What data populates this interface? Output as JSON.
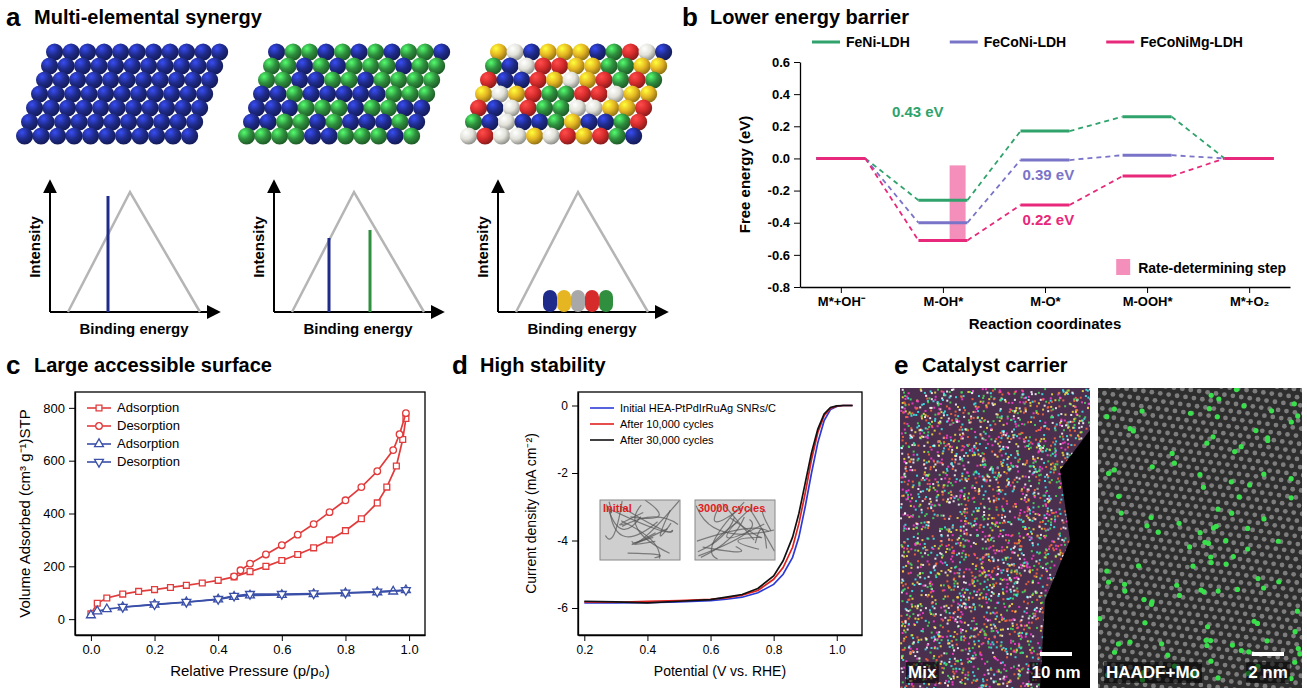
{
  "figure": {
    "a": {
      "label": "a",
      "title": "Multi-elemental synergy",
      "plots": [
        {
          "y_label": "Intensity",
          "x_label": "Binding energy"
        },
        {
          "y_label": "Intensity",
          "x_label": "Binding energy"
        },
        {
          "y_label": "Intensity",
          "x_label": "Binding energy"
        }
      ]
    },
    "e": {
      "label": "e",
      "title": "Catalyst carrier",
      "images": [
        {
          "label": "Mix",
          "scale_bar": "10 nm"
        },
        {
          "label": "HAADF+Mo",
          "scale_bar": "2 nm"
        }
      ]
    }
  },
  "chart_data": [
    {
      "label": "b",
      "title": "Lower energy barrier",
      "type": "step",
      "x_label": "Reaction coordinates",
      "y_label": "Free energy (eV)",
      "categories": [
        "M*+OH⁻",
        "M-OH*",
        "M-O*",
        "M-OOH*",
        "M*+O₂"
      ],
      "series": [
        {
          "name": "FeNi-LDH",
          "color": "#2fa36b",
          "values": [
            0,
            -0.26,
            0.17,
            0.26,
            0
          ]
        },
        {
          "name": "FeCoNi-LDH",
          "color": "#7a74c8",
          "values": [
            0,
            -0.4,
            -0.01,
            0.02,
            0
          ]
        },
        {
          "name": "FeCoNiMg-LDH",
          "color": "#e8287a",
          "values": [
            0,
            -0.51,
            -0.29,
            -0.11,
            0
          ]
        }
      ],
      "ylim": [
        -0.8,
        0.6
      ],
      "yticks": [
        -0.8,
        -0.6,
        -0.4,
        -0.2,
        {
          "value": 0,
          "label": "0.0"
        },
        0.2,
        0.4,
        0.6
      ],
      "legend": "top",
      "annotations": [
        {
          "text": "0.43 eV",
          "color": "#2fa36b"
        },
        {
          "text": "0.39 eV",
          "color": "#7a74c8"
        },
        {
          "text": "0.22 eV",
          "color": "#e8287a"
        }
      ],
      "rate_determining_step": {
        "text": "Rate-determining step",
        "color": "#f06aa6"
      }
    },
    {
      "label": "c",
      "title": "Large accessible surface",
      "type": "line",
      "x_label": "Relative Pressure (p/p₀)",
      "y_label": "Volume Adsorbed (cm³ g⁻¹)STP",
      "series": [
        {
          "name": "Adsorption",
          "color": "#e23b3b",
          "marker": "square",
          "x": [
            0.0,
            0.02,
            0.05,
            0.1,
            0.15,
            0.2,
            0.25,
            0.3,
            0.35,
            0.4,
            0.45,
            0.5,
            0.55,
            0.6,
            0.65,
            0.7,
            0.75,
            0.8,
            0.85,
            0.9,
            0.93,
            0.96,
            0.98,
            0.99
          ],
          "values": [
            20,
            60,
            80,
            95,
            105,
            112,
            120,
            128,
            137,
            147,
            160,
            180,
            200,
            222,
            245,
            270,
            300,
            335,
            380,
            440,
            500,
            580,
            680,
            760
          ]
        },
        {
          "name": "Desorption",
          "color": "#e23b3b",
          "marker": "circle",
          "x": [
            0.45,
            0.47,
            0.5,
            0.55,
            0.6,
            0.65,
            0.7,
            0.75,
            0.8,
            0.85,
            0.9,
            0.95,
            0.97,
            0.99
          ],
          "values": [
            162,
            185,
            210,
            245,
            280,
            320,
            360,
            405,
            450,
            500,
            560,
            640,
            700,
            780
          ]
        },
        {
          "name": "Adsorption",
          "color": "#3a4fa8",
          "marker": "triangle-up",
          "x": [
            0.0,
            0.02,
            0.05,
            0.1,
            0.2,
            0.3,
            0.4,
            0.45,
            0.5,
            0.6,
            0.7,
            0.8,
            0.9,
            0.95,
            0.99
          ],
          "values": [
            15,
            30,
            38,
            45,
            55,
            64,
            75,
            85,
            90,
            92,
            95,
            98,
            102,
            105,
            110
          ]
        },
        {
          "name": "Desorption",
          "color": "#3a4fa8",
          "marker": "triangle-down",
          "x": [
            0.1,
            0.2,
            0.3,
            0.4,
            0.45,
            0.5,
            0.6,
            0.7,
            0.8,
            0.9,
            0.99
          ],
          "values": [
            46,
            56,
            65,
            76,
            88,
            95,
            95,
            97,
            100,
            104,
            110
          ]
        }
      ],
      "xlim": [
        -0.05,
        1.05
      ],
      "xticks": [
        {
          "value": 0,
          "label": "0.0"
        },
        0.2,
        0.4,
        0.6,
        0.8,
        {
          "value": 1,
          "label": "1.0"
        }
      ],
      "ylim": [
        -60,
        860
      ],
      "yticks": [
        0,
        200,
        400,
        600,
        800
      ],
      "legend": "upper left"
    },
    {
      "label": "d",
      "title": "High stability",
      "type": "line",
      "x_label": "Potential (V vs. RHE)",
      "y_label": "Current density (mA cm⁻²)",
      "x": [
        0.2,
        0.3,
        0.4,
        0.5,
        0.6,
        0.65,
        0.7,
        0.75,
        0.8,
        0.83,
        0.86,
        0.88,
        0.9,
        0.92,
        0.94,
        0.96,
        0.98,
        1.0,
        1.02,
        1.05
      ],
      "series": [
        {
          "name": "Initial HEA-PtPdIrRuAg SNRs/C",
          "color": "#2b3bd6",
          "values": [
            -5.85,
            -5.85,
            -5.84,
            -5.82,
            -5.78,
            -5.74,
            -5.68,
            -5.55,
            -5.3,
            -5.0,
            -4.5,
            -3.9,
            -3.0,
            -2.0,
            -1.1,
            -0.45,
            -0.12,
            -0.03,
            0,
            0
          ]
        },
        {
          "name": "After 10,000 cycles",
          "color": "#e0201e",
          "values": [
            -5.82,
            -5.83,
            -5.8,
            -5.78,
            -5.74,
            -5.7,
            -5.62,
            -5.48,
            -5.15,
            -4.8,
            -4.2,
            -3.5,
            -2.6,
            -1.6,
            -0.8,
            -0.3,
            -0.08,
            -0.02,
            0,
            0
          ]
        },
        {
          "name": "After 30,000 cycles",
          "color": "#111111",
          "values": [
            -5.8,
            -5.82,
            -5.85,
            -5.8,
            -5.75,
            -5.68,
            -5.6,
            -5.42,
            -5.05,
            -4.6,
            -3.9,
            -3.2,
            -2.3,
            -1.4,
            -0.7,
            -0.25,
            -0.06,
            -0.01,
            0,
            0
          ]
        }
      ],
      "xlim": [
        0.18,
        1.08
      ],
      "xticks": [
        0.2,
        0.4,
        0.6,
        0.8,
        {
          "value": 1,
          "label": "1.0"
        }
      ],
      "ylim": [
        -6.8,
        0.4
      ],
      "yticks": [
        -6,
        -4,
        -2,
        0
      ],
      "legend": "upper left",
      "insets": [
        "Initial",
        "30000 cycles"
      ]
    }
  ]
}
